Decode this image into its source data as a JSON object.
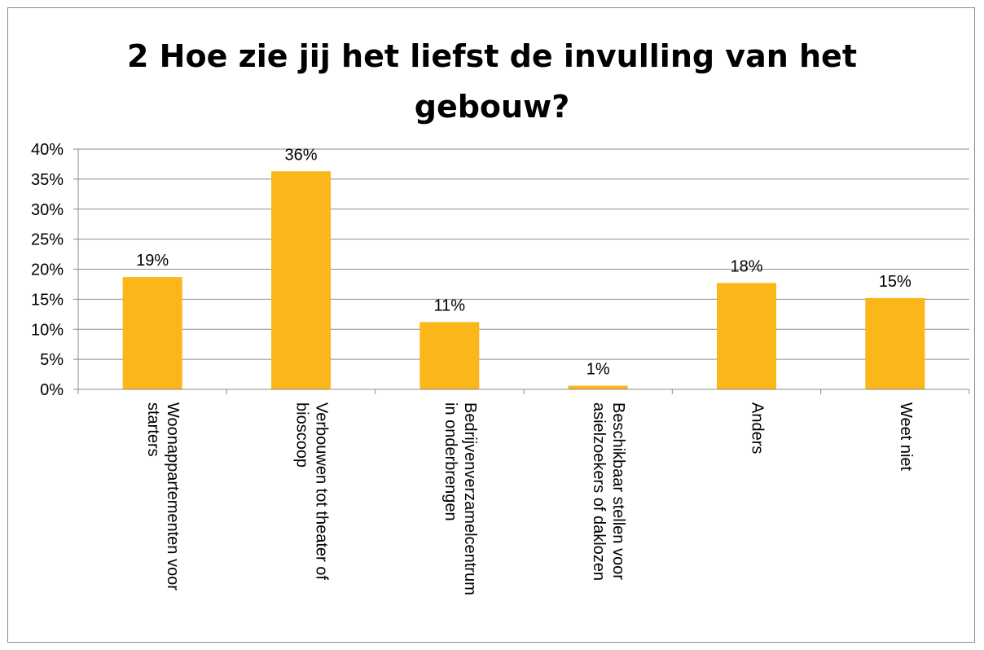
{
  "chart_data": {
    "type": "bar",
    "title_lines": [
      "2 Hoe zie jij het liefst de invulling van het",
      "gebouw?"
    ],
    "categories": [
      [
        "Woonappartementen voor",
        "starters"
      ],
      [
        "Verbouwen tot theater of",
        "bioscoop"
      ],
      [
        "Bedrijvenverzamelcentrum",
        "in onderbrengen"
      ],
      [
        "Beschikbaar stellen voor",
        "asielzoekers of daklozen"
      ],
      [
        "Anders"
      ],
      [
        "Weet niet"
      ]
    ],
    "values": [
      18.7,
      36.3,
      11.2,
      0.6,
      17.7,
      15.2
    ],
    "data_labels": [
      "19%",
      "36%",
      "11%",
      "1%",
      "18%",
      "15%"
    ],
    "yticks": [
      "0%",
      "5%",
      "10%",
      "15%",
      "20%",
      "25%",
      "30%",
      "35%",
      "40%"
    ],
    "ylim": [
      0,
      40
    ],
    "grid": true,
    "legend": "none",
    "bar_color": "#FBB61A",
    "grid_color": "#8c8c8c"
  }
}
